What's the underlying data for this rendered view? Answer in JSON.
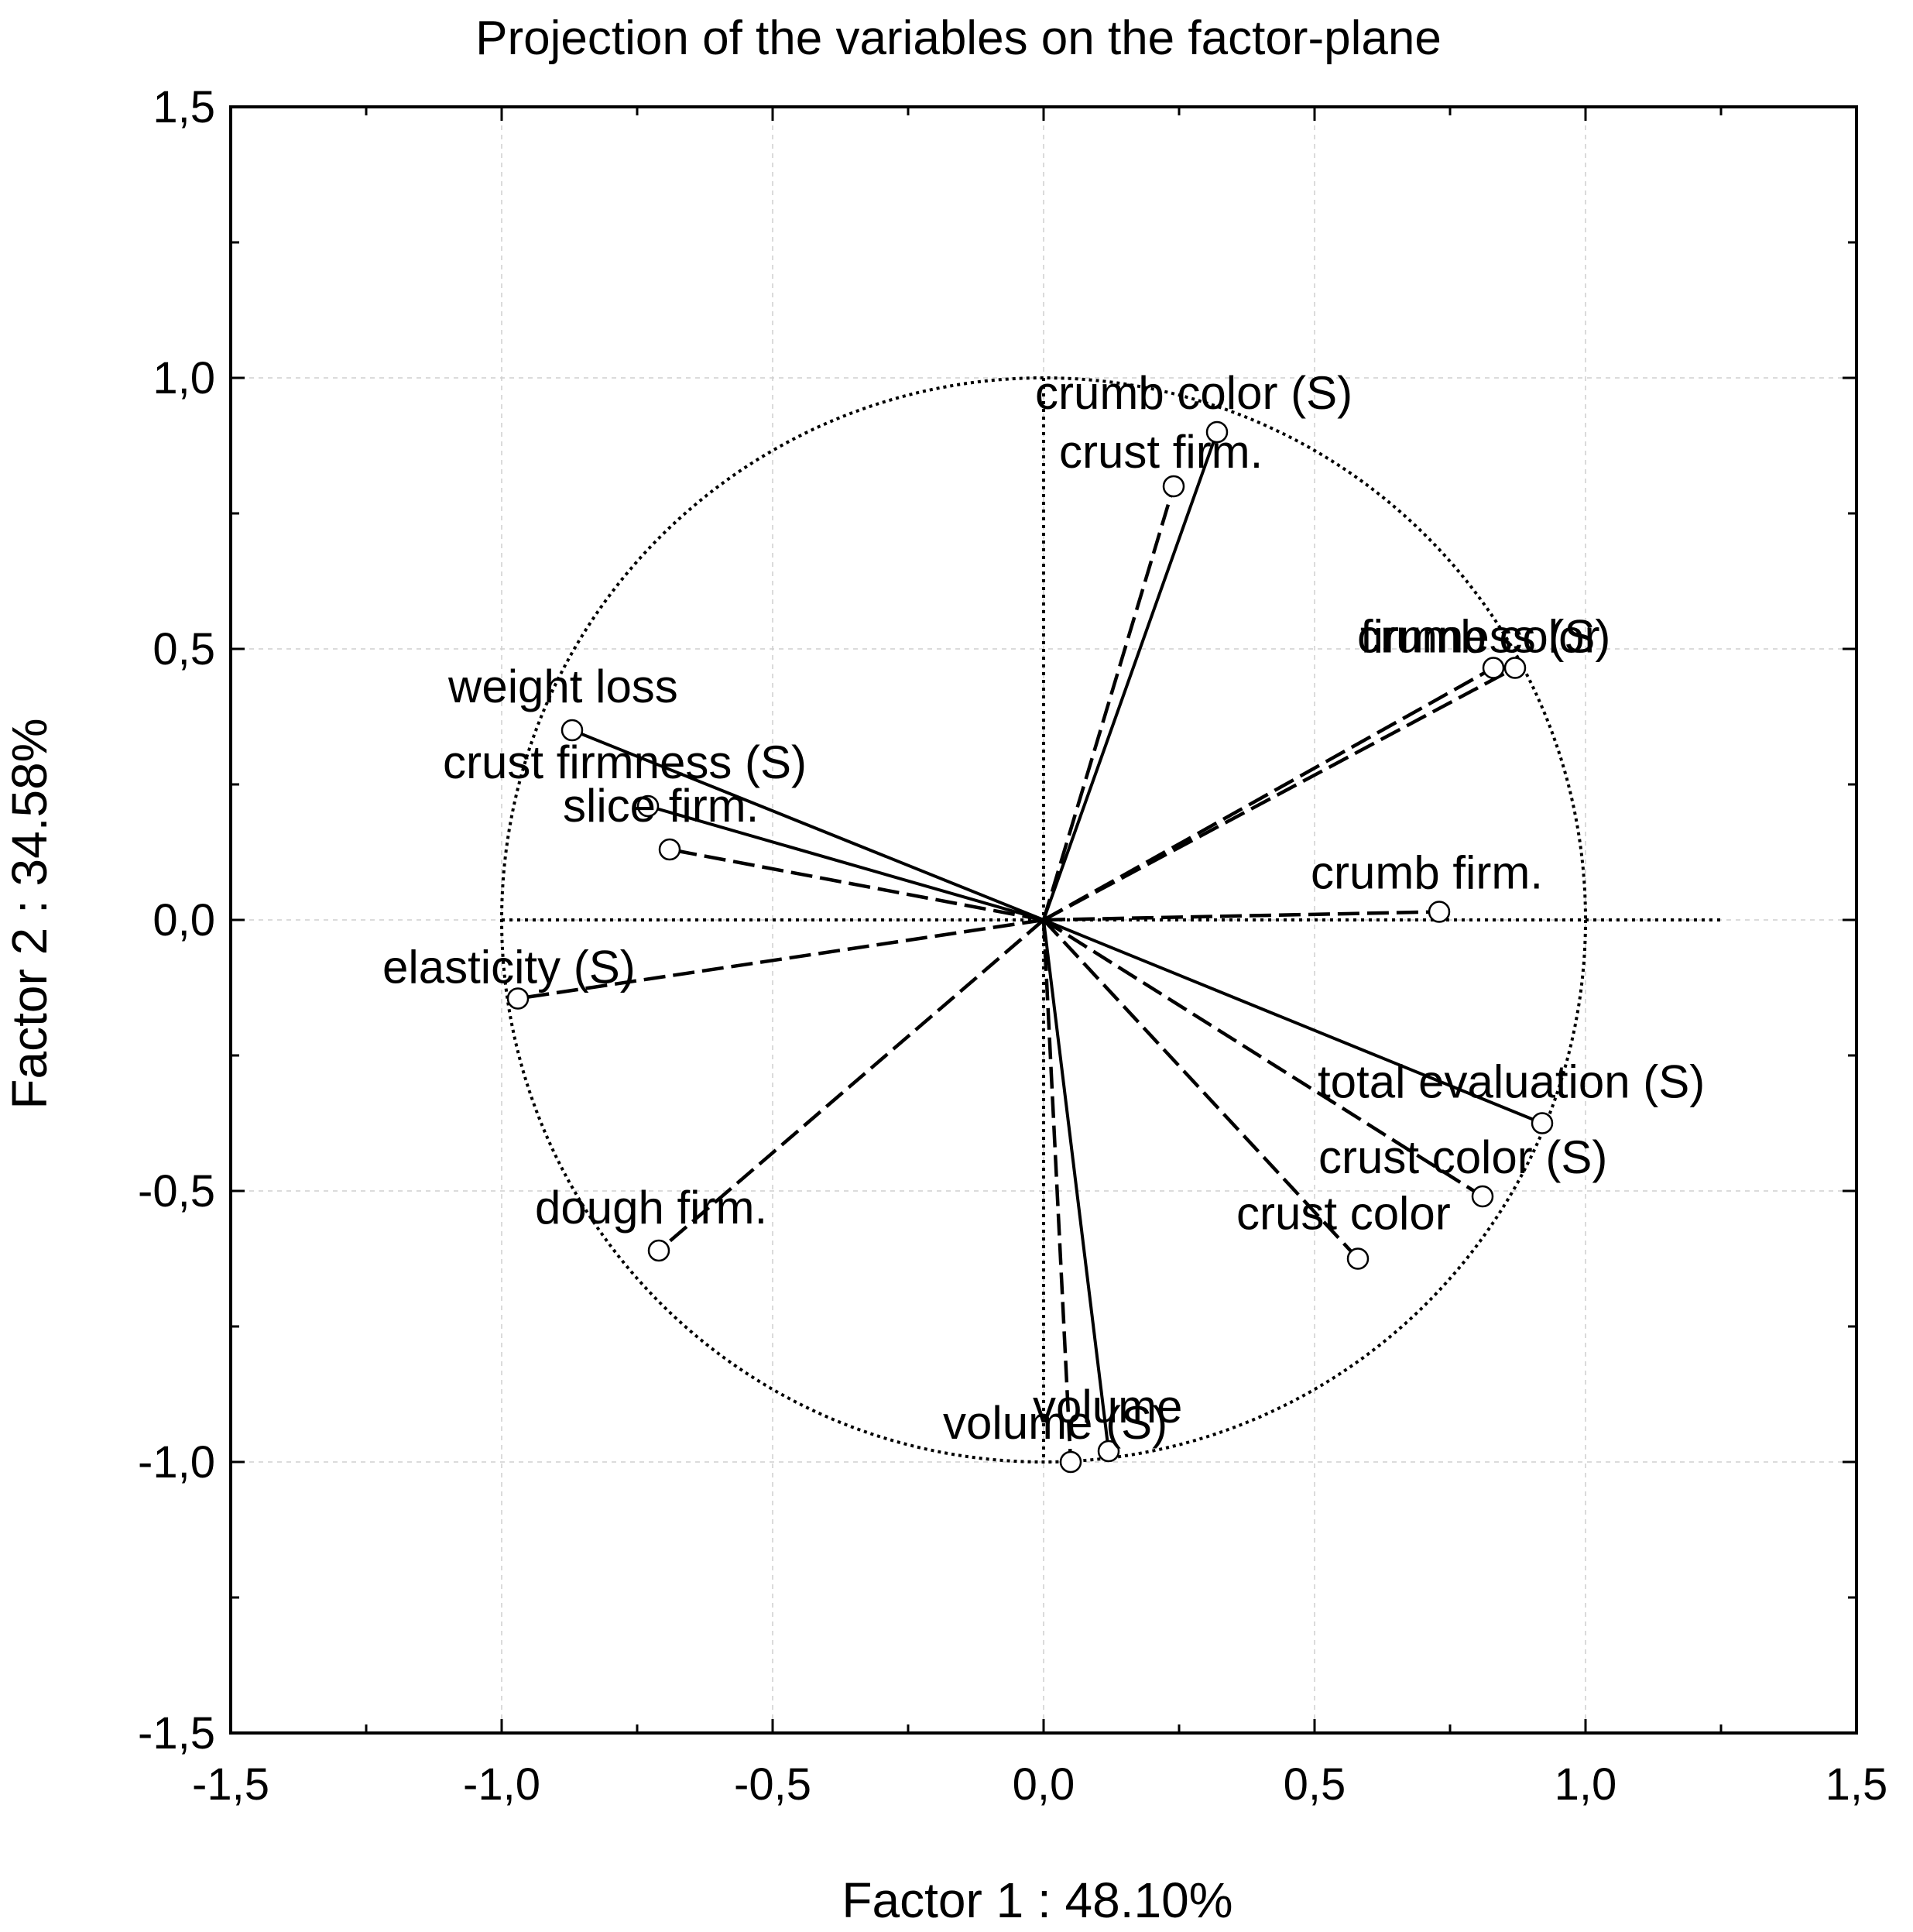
{
  "chart_data": {
    "type": "scatter",
    "title": "Projection of the variables on the factor-plane",
    "xlabel": "Factor 1 : 48.10%",
    "ylabel": "Factor 2 : 34.58%",
    "xlim": [
      -1.5,
      1.5
    ],
    "ylim": [
      -1.5,
      1.5
    ],
    "xticks": [
      "-1,5",
      "-1,0",
      "-0,5",
      "0,0",
      "0,5",
      "1,0",
      "1,5"
    ],
    "yticks": [
      "1,5",
      "1,0",
      "0,5",
      "0,0",
      "-0,5",
      "-1,0",
      "-1,5"
    ],
    "grid": true,
    "unit_circle": true,
    "points": [
      {
        "label": "crumb color (S)",
        "x": 0.32,
        "y": 0.9,
        "style": "solid"
      },
      {
        "label": "crust firm.",
        "x": 0.24,
        "y": 0.8,
        "style": "dashed"
      },
      {
        "label": "firmness (S)",
        "x": 0.87,
        "y": 0.465,
        "style": "dashed"
      },
      {
        "label": "crumb color",
        "x": 0.83,
        "y": 0.465,
        "style": "dashed"
      },
      {
        "label": "weight loss",
        "x": -0.87,
        "y": 0.35,
        "style": "solid"
      },
      {
        "label": "crust firmness (S)",
        "x": -0.73,
        "y": 0.21,
        "style": "solid"
      },
      {
        "label": "slice firm.",
        "x": -0.69,
        "y": 0.13,
        "style": "dashed"
      },
      {
        "label": "crumb firm.",
        "x": 0.73,
        "y": 0.015,
        "style": "dashed"
      },
      {
        "label": "elasticity (S)",
        "x": -0.97,
        "y": -0.145,
        "style": "dashed"
      },
      {
        "label": "total evaluation (S)",
        "x": 0.92,
        "y": -0.375,
        "style": "solid"
      },
      {
        "label": "crust color (S)",
        "x": 0.81,
        "y": -0.51,
        "style": "dashed"
      },
      {
        "label": "crust color",
        "x": 0.58,
        "y": -0.625,
        "style": "dashed"
      },
      {
        "label": "dough firm.",
        "x": -0.71,
        "y": -0.61,
        "style": "dashed"
      },
      {
        "label": "volume",
        "x": 0.12,
        "y": -0.98,
        "style": "solid"
      },
      {
        "label": "volume (S)",
        "x": 0.05,
        "y": -1.0,
        "style": "dashed"
      }
    ]
  }
}
